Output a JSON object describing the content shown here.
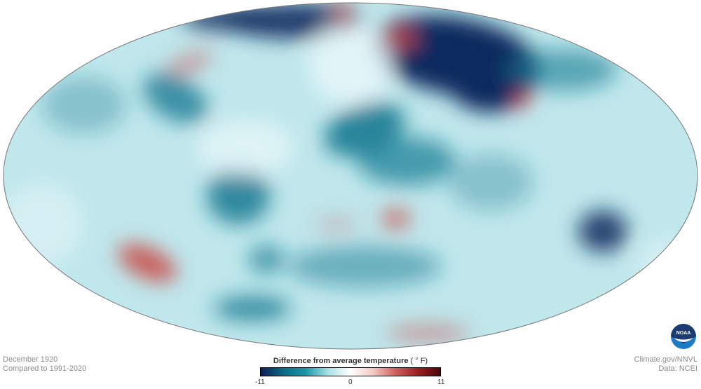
{
  "caption_left": {
    "line1": "December 1920",
    "line2": "Compared to 1991-2020"
  },
  "caption_right": {
    "line1": "Climate.gov/NNVL",
    "line2": "Data: NCEI"
  },
  "legend": {
    "title": "Difference from average temperature",
    "unit": "( ° F)",
    "min": "-11",
    "mid": "0",
    "max": "11",
    "colors": [
      "#0f1f55",
      "#0b6a86",
      "#1a97a8",
      "#a9e0e6",
      "#ffffff",
      "#f3c9c6",
      "#d0605b",
      "#9e1f1f",
      "#4a0606"
    ]
  },
  "map": {
    "projection": "Mollweide",
    "base_color": "#bfe7ec",
    "cold_color": "#0f2a5e",
    "mid_cold_color": "#167a92",
    "warm_color": "#c94a46",
    "outline_color": "#777777"
  },
  "logo": {
    "text": "NOAA",
    "colors": [
      "#1b3b73",
      "#1e7cc6"
    ]
  }
}
